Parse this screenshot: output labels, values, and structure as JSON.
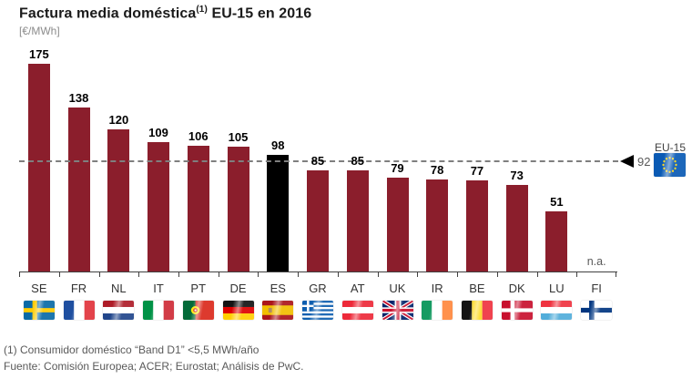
{
  "title": {
    "main": "Factura media doméstica",
    "sup": "(1)",
    "rest": " EU-15 en 2016"
  },
  "unit_label": "[€/MWh]",
  "footnote": "(1) Consumidor doméstico “Band D1” <5,5 MWh/año",
  "source": "Fuente: Comisión Europea; ACER; Eurostat; Análisis de PwC.",
  "colors": {
    "bar": "#8B1E2C",
    "highlight_bar": "#000000",
    "dashed_line": "#7F7F7F",
    "axis": "#404040",
    "value_text": "#000000",
    "muted_text": "#595959",
    "unit_text": "#8C8C8C"
  },
  "chart_data": {
    "type": "bar",
    "title": "Factura media doméstica (1) EU-15 en 2016",
    "ylabel": "€/MWh",
    "xlabel": "",
    "categories": [
      "SE",
      "FR",
      "NL",
      "IT",
      "PT",
      "DE",
      "ES",
      "GR",
      "AT",
      "UK",
      "IR",
      "BE",
      "DK",
      "LU",
      "FI"
    ],
    "values": [
      175,
      138,
      120,
      109,
      106,
      105,
      98,
      85,
      85,
      79,
      78,
      77,
      73,
      51,
      null
    ],
    "value_labels": [
      "175",
      "138",
      "120",
      "109",
      "106",
      "105",
      "98",
      "85",
      "85",
      "79",
      "78",
      "77",
      "73",
      "51",
      "n.a."
    ],
    "na_label": "n.a.",
    "highlight_category": "ES",
    "reference_line": {
      "label": "EU-15",
      "value": 92
    },
    "ylim": [
      0,
      189
    ],
    "grid": false,
    "legend": false
  }
}
